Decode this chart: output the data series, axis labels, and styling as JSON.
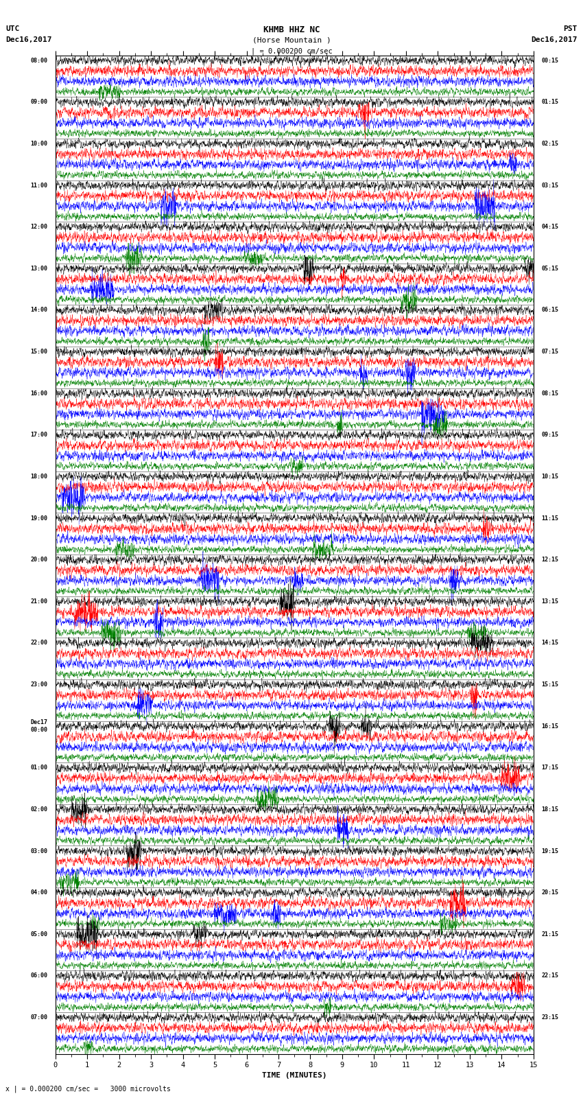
{
  "title_line1": "KHMB HHZ NC",
  "title_line2": "(Horse Mountain )",
  "scale_label": "| = 0.000200 cm/sec",
  "bottom_label": "x | = 0.000200 cm/sec =   3000 microvolts",
  "xlabel": "TIME (MINUTES)",
  "left_date": "UTC\nDec16,2017",
  "right_date": "PST\nDec16,2017",
  "colors": [
    "black",
    "red",
    "blue",
    "green"
  ],
  "fig_width": 8.5,
  "fig_height": 16.13,
  "dpi": 100,
  "noise_seed": 42,
  "x_ticks": [
    0,
    1,
    2,
    3,
    4,
    5,
    6,
    7,
    8,
    9,
    10,
    11,
    12,
    13,
    14,
    15
  ],
  "left_times_utc": [
    "08:00",
    "09:00",
    "10:00",
    "11:00",
    "12:00",
    "13:00",
    "14:00",
    "15:00",
    "16:00",
    "17:00",
    "18:00",
    "19:00",
    "20:00",
    "21:00",
    "22:00",
    "23:00",
    "Dec17\n00:00",
    "01:00",
    "02:00",
    "03:00",
    "04:00",
    "05:00",
    "06:00",
    "07:00"
  ],
  "right_times_pst": [
    "00:15",
    "01:15",
    "02:15",
    "03:15",
    "04:15",
    "05:15",
    "06:15",
    "07:15",
    "08:15",
    "09:15",
    "10:15",
    "11:15",
    "12:15",
    "13:15",
    "14:15",
    "15:15",
    "16:15",
    "17:15",
    "18:15",
    "19:15",
    "20:15",
    "21:15",
    "22:15",
    "23:15"
  ]
}
